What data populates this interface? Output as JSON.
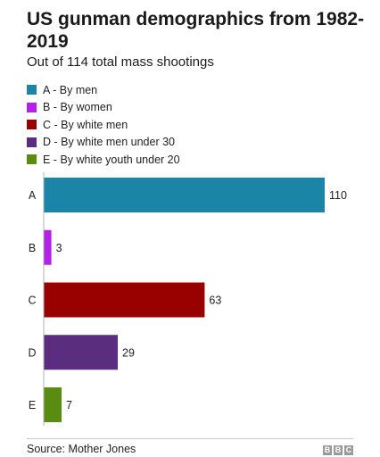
{
  "header": {
    "title": "US gunman demographics from 1982-2019",
    "subtitle": "Out of 114 total mass shootings"
  },
  "legend": [
    {
      "label": "A - By men",
      "color": "#1b85a8"
    },
    {
      "label": "B - By women",
      "color": "#b520e8"
    },
    {
      "label": "C - By white men",
      "color": "#990000"
    },
    {
      "label": "D - By white men under 30",
      "color": "#5b2d80"
    },
    {
      "label": "E - By white youth under 20",
      "color": "#5a8c12"
    }
  ],
  "chart_data": {
    "type": "bar",
    "orientation": "horizontal",
    "title": "US gunman demographics from 1982-2019",
    "subtitle": "Out of 114 total mass shootings",
    "categories": [
      "A",
      "B",
      "C",
      "D",
      "E"
    ],
    "values": [
      110,
      3,
      63,
      29,
      7
    ],
    "colors": [
      "#1b85a8",
      "#b520e8",
      "#990000",
      "#5b2d80",
      "#5a8c12"
    ],
    "data_labels": [
      "110",
      "3",
      "63",
      "29",
      "7"
    ],
    "xlim": [
      0,
      110
    ],
    "grid": false,
    "legend_position": "top-left"
  },
  "footer": {
    "source": "Source: Mother Jones",
    "logo": "BBC",
    "logo_letters": [
      "B",
      "B",
      "C"
    ]
  }
}
